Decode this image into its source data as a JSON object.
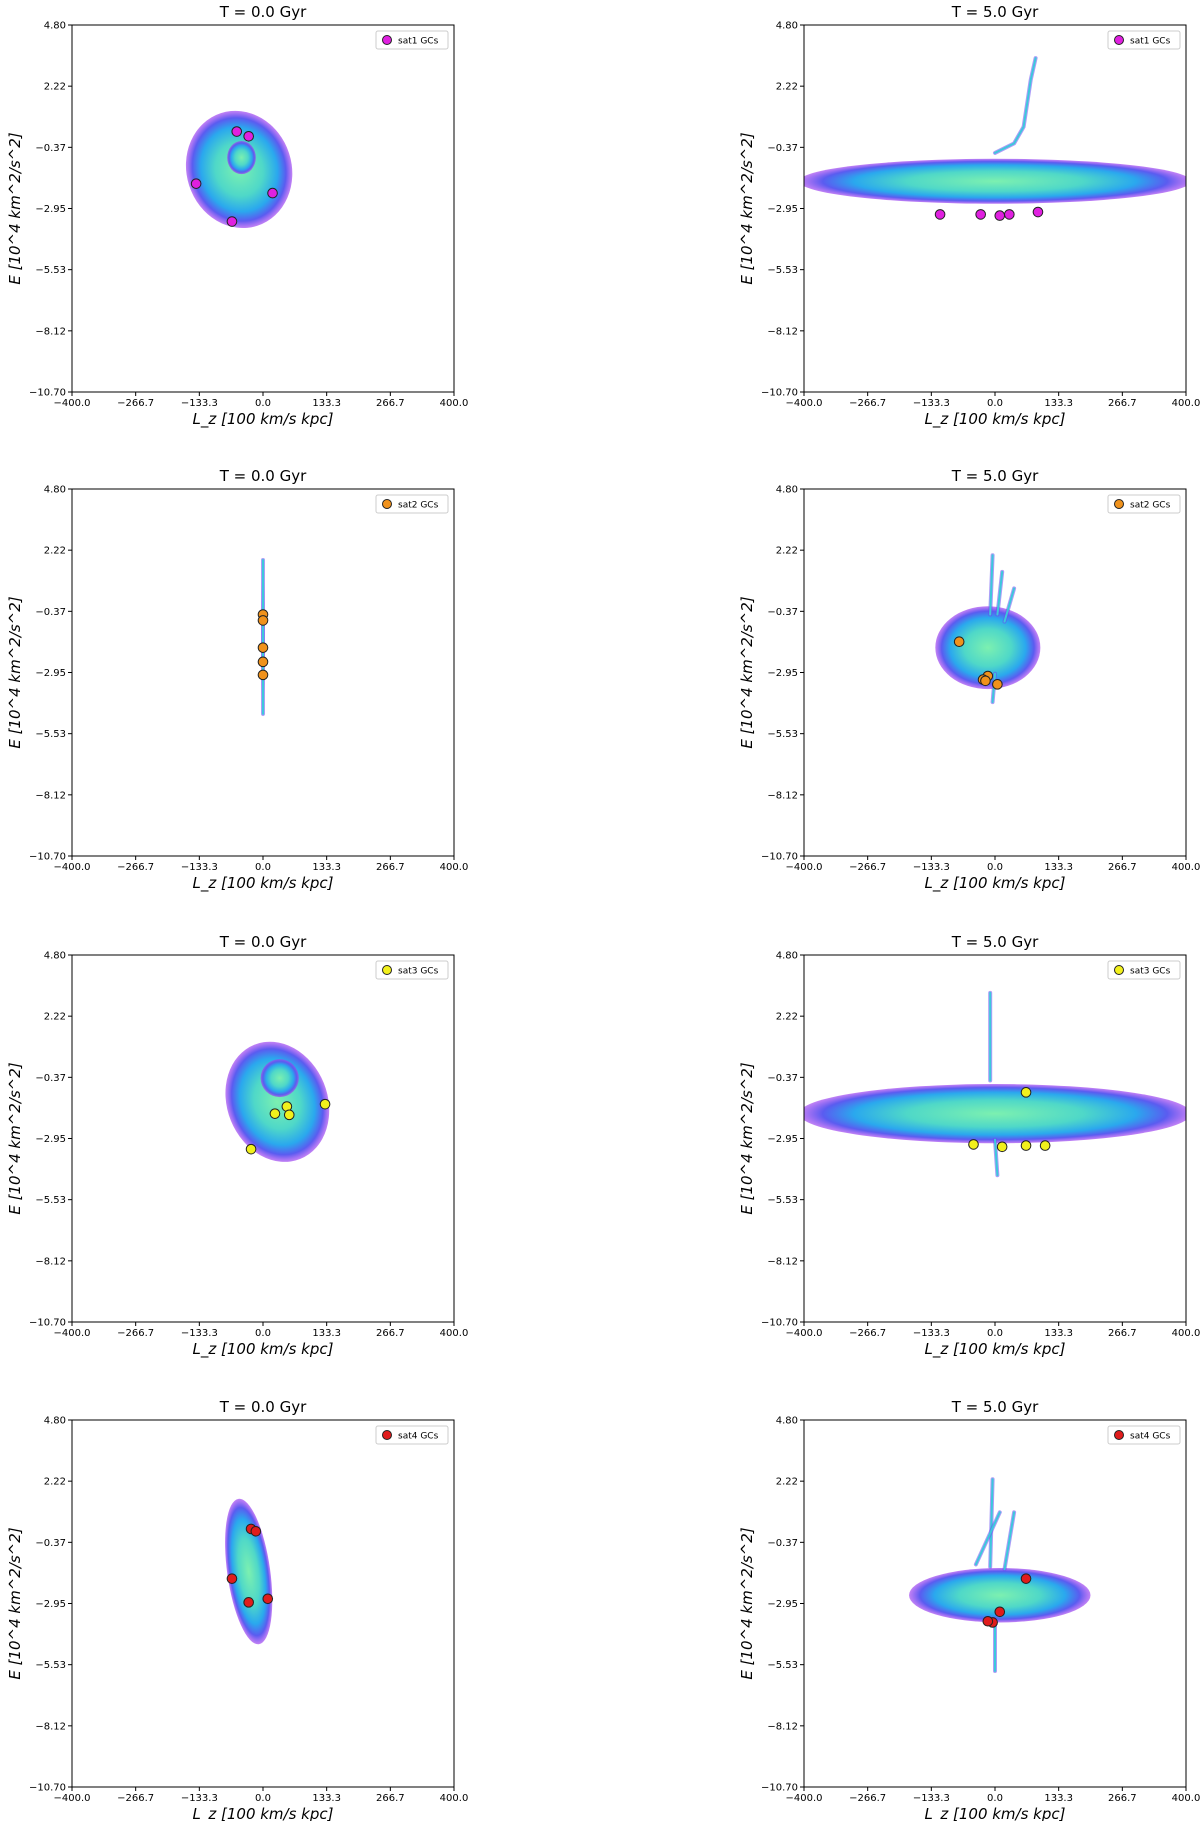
{
  "chart_data": [
    {
      "type": "scatter",
      "panel": "sat1-t0",
      "title": "T = 0.0 Gyr",
      "xlabel": "L_z [100 km/s kpc]",
      "ylabel": "E [10^4 km^2/s^2]",
      "xlim": [
        -400,
        400
      ],
      "ylim": [
        -10.7,
        4.8
      ],
      "xticks": [
        "−400.0",
        "−266.7",
        "−133.3",
        "0.0",
        "133.3",
        "266.7",
        "400.0"
      ],
      "yticks": [
        "4.80",
        "2.22",
        "−0.37",
        "−2.95",
        "−5.53",
        "−8.12",
        "−10.70"
      ],
      "legend": {
        "label": "sat1 GCs",
        "position": "top-right"
      },
      "gc_color": "#e020e0",
      "density": [
        {
          "cx": -50,
          "cy": -1.3,
          "rx": 110,
          "ry": 2.5,
          "rot": -18
        },
        {
          "cx": -45,
          "cy": -0.8,
          "rx": 30,
          "ry": 0.7,
          "rot": 0
        }
      ],
      "series": [
        {
          "name": "sat1 GCs",
          "points": [
            [
              -55,
              0.3
            ],
            [
              -30,
              0.1
            ],
            [
              -140,
              -1.9
            ],
            [
              20,
              -2.3
            ],
            [
              -65,
              -3.5
            ]
          ]
        }
      ]
    },
    {
      "type": "scatter",
      "panel": "sat1-t5",
      "title": "T = 5.0 Gyr",
      "xlabel": "L_z [100 km/s kpc]",
      "ylabel": "E [10^4 km^2/s^2]",
      "xlim": [
        -400,
        400
      ],
      "ylim": [
        -10.7,
        4.8
      ],
      "xticks": [
        "−400.0",
        "−266.7",
        "−133.3",
        "0.0",
        "133.3",
        "266.7",
        "400.0"
      ],
      "yticks": [
        "4.80",
        "2.22",
        "−0.37",
        "−2.95",
        "−5.53",
        "−8.12",
        "−10.70"
      ],
      "legend": {
        "label": "sat1 GCs",
        "position": "top-right"
      },
      "gc_color": "#e020e0",
      "density": [
        {
          "cx": 0,
          "cy": -1.8,
          "rx": 410,
          "ry": 0.95,
          "rot": 0
        }
      ],
      "streams": [
        {
          "points": [
            [
              0,
              -0.6
            ],
            [
              40,
              -0.2
            ],
            [
              60,
              0.5
            ],
            [
              75,
              2.5
            ],
            [
              85,
              3.4
            ]
          ]
        }
      ],
      "series": [
        {
          "name": "sat1 GCs",
          "points": [
            [
              -115,
              -3.2
            ],
            [
              -30,
              -3.2
            ],
            [
              10,
              -3.25
            ],
            [
              30,
              -3.2
            ],
            [
              90,
              -3.1
            ]
          ]
        }
      ]
    },
    {
      "type": "scatter",
      "panel": "sat2-t0",
      "title": "T = 0.0 Gyr",
      "xlabel": "L_z [100 km/s kpc]",
      "ylabel": "E [10^4 km^2/s^2]",
      "xlim": [
        -400,
        400
      ],
      "ylim": [
        -10.7,
        4.8
      ],
      "xticks": [
        "−400.0",
        "−266.7",
        "−133.3",
        "0.0",
        "133.3",
        "266.7",
        "400.0"
      ],
      "yticks": [
        "4.80",
        "2.22",
        "−0.37",
        "−2.95",
        "−5.53",
        "−8.12",
        "−10.70"
      ],
      "legend": {
        "label": "sat2 GCs",
        "position": "top-right"
      },
      "gc_color": "#f0921c",
      "density": [
        {
          "cx": 0,
          "cy": -1.5,
          "rx": 3,
          "ry": 3.3,
          "rot": 0
        }
      ],
      "streams": [
        {
          "points": [
            [
              0,
              1.8
            ],
            [
              0,
              -4.7
            ]
          ]
        }
      ],
      "series": [
        {
          "name": "sat2 GCs",
          "points": [
            [
              0,
              -0.5
            ],
            [
              0,
              -0.75
            ],
            [
              0,
              -1.9
            ],
            [
              0,
              -2.5
            ],
            [
              0,
              -3.05
            ]
          ]
        }
      ]
    },
    {
      "type": "scatter",
      "panel": "sat2-t5",
      "title": "T = 5.0 Gyr",
      "xlabel": "L_z [100 km/s kpc]",
      "ylabel": "E [10^4 km^2/s^2]",
      "xlim": [
        -400,
        400
      ],
      "ylim": [
        -10.7,
        4.8
      ],
      "xticks": [
        "−400.0",
        "−266.7",
        "−133.3",
        "0.0",
        "133.3",
        "266.7",
        "400.0"
      ],
      "yticks": [
        "4.80",
        "2.22",
        "−0.37",
        "−2.95",
        "−5.53",
        "−8.12",
        "−10.70"
      ],
      "legend": {
        "label": "sat2 GCs",
        "position": "top-right"
      },
      "gc_color": "#f0921c",
      "density": [
        {
          "cx": -15,
          "cy": -1.9,
          "rx": 110,
          "ry": 1.75,
          "rot": 0
        }
      ],
      "streams": [
        {
          "points": [
            [
              -10,
              -0.5
            ],
            [
              -5,
              2.0
            ]
          ]
        },
        {
          "points": [
            [
              5,
              -0.5
            ],
            [
              15,
              1.3
            ]
          ]
        },
        {
          "points": [
            [
              20,
              -0.8
            ],
            [
              40,
              0.6
            ]
          ]
        },
        {
          "points": [
            [
              0,
              -3.0
            ],
            [
              -5,
              -4.2
            ]
          ]
        }
      ],
      "series": [
        {
          "name": "sat2 GCs",
          "points": [
            [
              -75,
              -1.65
            ],
            [
              -15,
              -3.1
            ],
            [
              -25,
              -3.25
            ],
            [
              5,
              -3.45
            ],
            [
              -20,
              -3.3
            ]
          ]
        }
      ]
    },
    {
      "type": "scatter",
      "panel": "sat3-t0",
      "title": "T = 0.0 Gyr",
      "xlabel": "L_z [100 km/s kpc]",
      "ylabel": "E [10^4 km^2/s^2]",
      "xlim": [
        -400,
        400
      ],
      "ylim": [
        -10.7,
        4.8
      ],
      "xticks": [
        "−400.0",
        "−266.7",
        "−133.3",
        "0.0",
        "133.3",
        "266.7",
        "400.0"
      ],
      "yticks": [
        "4.80",
        "2.22",
        "−0.37",
        "−2.95",
        "−5.53",
        "−8.12",
        "−10.70"
      ],
      "legend": {
        "label": "sat3 GCs",
        "position": "top-right"
      },
      "gc_color": "#f2f01c",
      "density": [
        {
          "cx": 30,
          "cy": -1.4,
          "rx": 105,
          "ry": 2.6,
          "rot": -22
        },
        {
          "cx": 35,
          "cy": -0.4,
          "rx": 40,
          "ry": 0.8,
          "rot": 0
        }
      ],
      "series": [
        {
          "name": "sat3 GCs",
          "points": [
            [
              25,
              -1.9
            ],
            [
              50,
              -1.6
            ],
            [
              55,
              -1.95
            ],
            [
              130,
              -1.5
            ],
            [
              -25,
              -3.4
            ]
          ]
        }
      ]
    },
    {
      "type": "scatter",
      "panel": "sat3-t5",
      "title": "T = 5.0 Gyr",
      "xlabel": "L_z [100 km/s kpc]",
      "ylabel": "E [10^4 km^2/s^2]",
      "xlim": [
        -400,
        400
      ],
      "ylim": [
        -10.7,
        4.8
      ],
      "xticks": [
        "−400.0",
        "−266.7",
        "−133.3",
        "0.0",
        "133.3",
        "266.7",
        "400.0"
      ],
      "yticks": [
        "4.80",
        "2.22",
        "−0.37",
        "−2.95",
        "−5.53",
        "−8.12",
        "−10.70"
      ],
      "legend": {
        "label": "sat3 GCs",
        "position": "top-right"
      },
      "gc_color": "#f2f01c",
      "density": [
        {
          "cx": 0,
          "cy": -1.9,
          "rx": 410,
          "ry": 1.25,
          "rot": 0
        }
      ],
      "streams": [
        {
          "points": [
            [
              -10,
              -0.5
            ],
            [
              -10,
              3.2
            ]
          ]
        },
        {
          "points": [
            [
              0,
              -3.0
            ],
            [
              5,
              -4.5
            ]
          ]
        }
      ],
      "series": [
        {
          "name": "sat3 GCs",
          "points": [
            [
              65,
              -1.0
            ],
            [
              -45,
              -3.2
            ],
            [
              15,
              -3.3
            ],
            [
              65,
              -3.25
            ],
            [
              105,
              -3.25
            ]
          ]
        }
      ]
    },
    {
      "type": "scatter",
      "panel": "sat4-t0",
      "title": "T = 0.0 Gyr",
      "xlabel": "L_z [100 km/s kpc]",
      "ylabel": "E [10^4 km^2/s^2]",
      "xlim": [
        -400,
        400
      ],
      "ylim": [
        -10.7,
        4.8
      ],
      "xticks": [
        "−400.0",
        "−266.7",
        "−133.3",
        "0.0",
        "133.3",
        "266.7",
        "400.0"
      ],
      "yticks": [
        "4.80",
        "2.22",
        "−0.37",
        "−2.95",
        "−5.53",
        "−8.12",
        "−10.70"
      ],
      "legend": {
        "label": "sat4 GCs",
        "position": "top-right"
      },
      "gc_color": "#e01c1c",
      "density": [
        {
          "cx": -30,
          "cy": -1.6,
          "rx": 45,
          "ry": 3.1,
          "rot": -8
        }
      ],
      "series": [
        {
          "name": "sat4 GCs",
          "points": [
            [
              -25,
              0.2
            ],
            [
              -15,
              0.1
            ],
            [
              -65,
              -1.9
            ],
            [
              -30,
              -2.9
            ],
            [
              10,
              -2.75
            ]
          ]
        }
      ]
    },
    {
      "type": "scatter",
      "panel": "sat4-t5",
      "title": "T = 5.0 Gyr",
      "xlabel": "L_z [100 km/s kpc]",
      "ylabel": "E [10^4 km^2/s^2]",
      "xlim": [
        -400,
        400
      ],
      "ylim": [
        -10.7,
        4.8
      ],
      "xticks": [
        "−400.0",
        "−266.7",
        "−133.3",
        "0.0",
        "133.3",
        "266.7",
        "400.0"
      ],
      "yticks": [
        "4.80",
        "2.22",
        "−0.37",
        "−2.95",
        "−5.53",
        "−8.12",
        "−10.70"
      ],
      "legend": {
        "label": "sat4 GCs",
        "position": "top-right"
      },
      "gc_color": "#e01c1c",
      "density": [
        {
          "cx": 10,
          "cy": -2.6,
          "rx": 190,
          "ry": 1.15,
          "rot": 0
        }
      ],
      "streams": [
        {
          "points": [
            [
              -10,
              -1.4
            ],
            [
              -5,
              2.3
            ]
          ]
        },
        {
          "points": [
            [
              -40,
              -1.3
            ],
            [
              10,
              0.9
            ]
          ]
        },
        {
          "points": [
            [
              20,
              -1.5
            ],
            [
              40,
              0.9
            ]
          ]
        },
        {
          "points": [
            [
              0,
              -3.6
            ],
            [
              0,
              -5.8
            ]
          ]
        }
      ],
      "series": [
        {
          "name": "sat4 GCs",
          "points": [
            [
              65,
              -1.9
            ],
            [
              10,
              -3.3
            ],
            [
              -5,
              -3.75
            ],
            [
              -15,
              -3.7
            ]
          ]
        }
      ]
    }
  ]
}
